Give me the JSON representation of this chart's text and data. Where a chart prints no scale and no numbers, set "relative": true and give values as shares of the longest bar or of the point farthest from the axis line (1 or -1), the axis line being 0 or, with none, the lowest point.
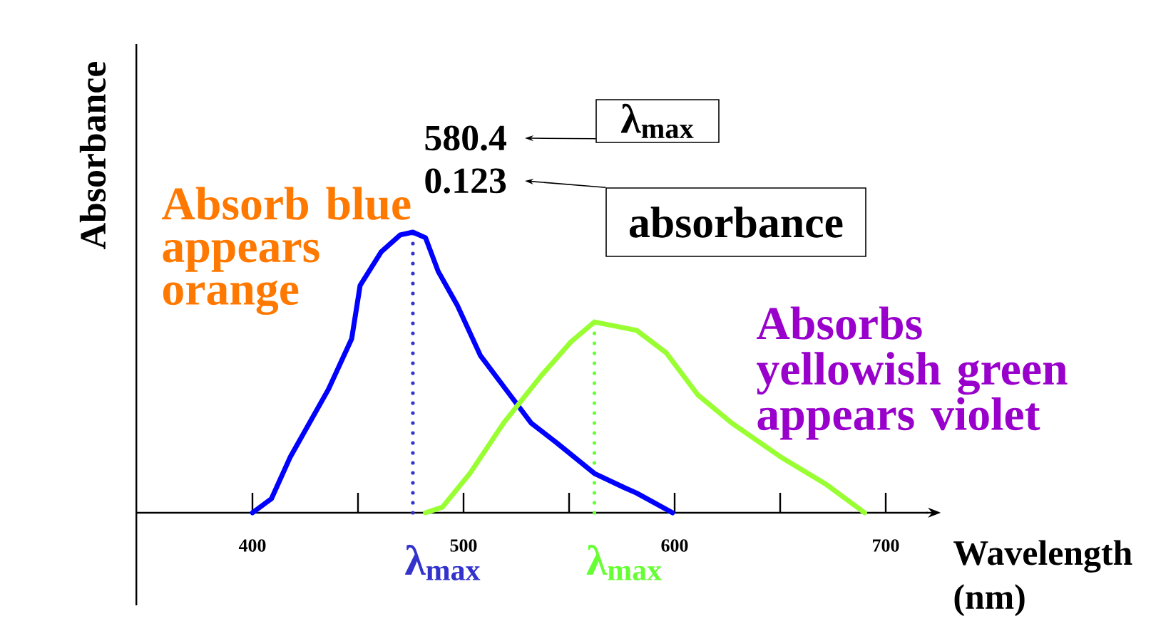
{
  "chart_data": {
    "type": "line",
    "relative": true,
    "xlabel": "Wavelength (nm)",
    "ylabel": "Absorbance",
    "xlim": [
      345,
      720
    ],
    "xticks": [
      400,
      {
        "value": 450,
        "label": null
      },
      500,
      {
        "value": 550,
        "label": null
      },
      600,
      {
        "value": 650,
        "label": null
      },
      700
    ],
    "marker": "none",
    "line_style": "solid",
    "series": [
      {
        "color": "#0000ff",
        "x": [
          400,
          409,
          418,
          427,
          436,
          447,
          451,
          461,
          470,
          476,
          482,
          488,
          497,
          508,
          522,
          532,
          544,
          562,
          576,
          582,
          599
        ],
        "values": [
          0,
          0.05,
          0.2,
          0.32,
          0.44,
          0.62,
          0.81,
          0.93,
          0.99,
          1,
          0.98,
          0.86,
          0.74,
          0.56,
          0.42,
          0.32,
          0.25,
          0.14,
          0.09,
          0.07,
          0
        ]
      },
      {
        "color": "#99ff33",
        "x": [
          482,
          490,
          503,
          519,
          537,
          551,
          562,
          582,
          596,
          611,
          627,
          650,
          672,
          690
        ],
        "values": [
          0,
          0.02,
          0.14,
          0.32,
          0.49,
          0.61,
          0.68,
          0.65,
          0.57,
          0.42,
          0.32,
          0.2,
          0.1,
          0
        ]
      }
    ],
    "ref_lines": [
      {
        "axis": "x",
        "value": 476,
        "label": "λ$_{max}$",
        "color": "#3333cc",
        "line_style": "dotted"
      },
      {
        "axis": "x",
        "value": 562,
        "label": "λ$_{max}$",
        "color": "#66ff33",
        "line_style": "dotted"
      }
    ],
    "annotations": [
      "Absorb blue appears orange",
      "Absorbs yellowish green appears violet",
      "580.4",
      "0.123",
      "λ$_{max}$",
      "absorbance"
    ]
  }
}
